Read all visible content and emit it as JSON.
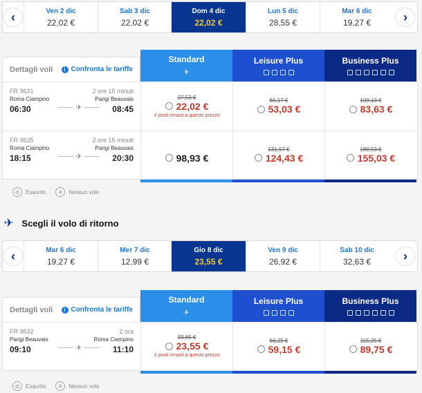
{
  "outbound": {
    "dates": [
      {
        "day": "Ven 2 dic",
        "price": "22,02 €"
      },
      {
        "day": "Sab 3 dic",
        "price": "22,02 €"
      },
      {
        "day": "Dom 4 dic",
        "price": "22,02 €",
        "active": true
      },
      {
        "day": "Lun 5 dic",
        "price": "28,55 €"
      },
      {
        "day": "Mar 6 dic",
        "price": "19,27 €"
      }
    ],
    "header": {
      "details": "Dettagli voli",
      "compare": "Confronta le tariffe"
    },
    "fares": {
      "standard": "Standard",
      "leisure": "Leisure Plus",
      "business": "Business Plus"
    },
    "flights": [
      {
        "code": "FR 9631",
        "duration": "2 ore 15 minuti",
        "from": "Roma Ciampino",
        "to": "Parigi Beauvais",
        "dep": "06:30",
        "arr": "08:45",
        "standard": {
          "old": "27,53 €",
          "price": "22,02 €",
          "note": "4 posti rimasti a questo prezzo"
        },
        "leisure": {
          "old": "60,17 €",
          "price": "53,03 €"
        },
        "business": {
          "old": "109,13 €",
          "price": "83,63 €"
        }
      },
      {
        "code": "FR 9635",
        "duration": "2 ore 15 minuti",
        "from": "Roma Ciampino",
        "to": "Parigi Beauvais",
        "dep": "18:15",
        "arr": "20:30",
        "standard": {
          "old": "",
          "price": "98,93 €",
          "note": ""
        },
        "leisure": {
          "old": "131,57 €",
          "price": "124,43 €"
        },
        "business": {
          "old": "180,53 €",
          "price": "155,03 €"
        }
      }
    ]
  },
  "legend": {
    "soldout": "Esaurito",
    "noflight": "Nessun volo"
  },
  "return_title": "Scegli il volo di ritorno",
  "inbound": {
    "dates": [
      {
        "day": "Mar 6 dic",
        "price": "19,27 €"
      },
      {
        "day": "Mer 7 dic",
        "price": "12,99 €"
      },
      {
        "day": "Gio 8 dic",
        "price": "23,55 €",
        "active": true
      },
      {
        "day": "Ven 9 dic",
        "price": "26,92 €"
      },
      {
        "day": "Sab 10 dic",
        "price": "32,63 €"
      }
    ],
    "header": {
      "details": "Dettagli voli",
      "compare": "Confronta le tariffe"
    },
    "fares": {
      "standard": "Standard",
      "leisure": "Leisure Plus",
      "business": "Business Plus"
    },
    "flights": [
      {
        "code": "FR 9632",
        "duration": "2 ora",
        "from": "Parigi Beauvais",
        "to": "Roma Ciampino",
        "dep": "09:10",
        "arr": "11:10",
        "standard": {
          "old": "33,65 €",
          "price": "23,55 €",
          "note": "3 posti rimasti a questo prezzo"
        },
        "leisure": {
          "old": "66,29 €",
          "price": "59,15 €"
        },
        "business": {
          "old": "115,25 €",
          "price": "89,75 €"
        }
      }
    ]
  },
  "colors": {
    "standard": "#2a8fe8",
    "leisure": "#1d4fcf",
    "business": "#0a2a86",
    "selected_day": "#073590",
    "price_red": "#c0392b"
  }
}
